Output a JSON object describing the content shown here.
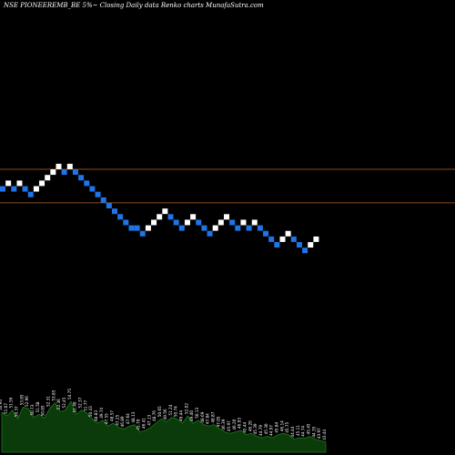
{
  "header": {
    "title": "NSE PIONEEREMB_BE 5%~  Closing Daily data  Renko  charts MunafaSutra.com"
  },
  "colors": {
    "background": "#000000",
    "up_brick": "#ffffff",
    "down_brick": "#1f74e8",
    "level_line": "#8a4a1c",
    "volume_fill": "#0b3b0b",
    "volume_stroke": "#1a7a1a"
  },
  "chart_data": {
    "type": "renko",
    "bricks": [
      {
        "level": 3,
        "dir": "down"
      },
      {
        "level": 4,
        "dir": "up"
      },
      {
        "level": 3,
        "dir": "down"
      },
      {
        "level": 4,
        "dir": "up"
      },
      {
        "level": 3,
        "dir": "down"
      },
      {
        "level": 2,
        "dir": "down"
      },
      {
        "level": 3,
        "dir": "up"
      },
      {
        "level": 4,
        "dir": "up"
      },
      {
        "level": 5,
        "dir": "up"
      },
      {
        "level": 6,
        "dir": "up"
      },
      {
        "level": 7,
        "dir": "up"
      },
      {
        "level": 6,
        "dir": "down"
      },
      {
        "level": 7,
        "dir": "up"
      },
      {
        "level": 6,
        "dir": "down"
      },
      {
        "level": 5,
        "dir": "down"
      },
      {
        "level": 4,
        "dir": "down"
      },
      {
        "level": 3,
        "dir": "down"
      },
      {
        "level": 2,
        "dir": "down"
      },
      {
        "level": 1,
        "dir": "down"
      },
      {
        "level": 0,
        "dir": "down"
      },
      {
        "level": -1,
        "dir": "down"
      },
      {
        "level": -2,
        "dir": "down"
      },
      {
        "level": -3,
        "dir": "down"
      },
      {
        "level": -4,
        "dir": "down"
      },
      {
        "level": -4,
        "dir": "down"
      },
      {
        "level": -5,
        "dir": "down"
      },
      {
        "level": -4,
        "dir": "up"
      },
      {
        "level": -3,
        "dir": "up"
      },
      {
        "level": -2,
        "dir": "up"
      },
      {
        "level": -1,
        "dir": "up"
      },
      {
        "level": -2,
        "dir": "down"
      },
      {
        "level": -3,
        "dir": "down"
      },
      {
        "level": -4,
        "dir": "down"
      },
      {
        "level": -3,
        "dir": "up"
      },
      {
        "level": -2,
        "dir": "up"
      },
      {
        "level": -3,
        "dir": "down"
      },
      {
        "level": -4,
        "dir": "down"
      },
      {
        "level": -5,
        "dir": "down"
      },
      {
        "level": -4,
        "dir": "up"
      },
      {
        "level": -3,
        "dir": "up"
      },
      {
        "level": -2,
        "dir": "up"
      },
      {
        "level": -3,
        "dir": "down"
      },
      {
        "level": -4,
        "dir": "down"
      },
      {
        "level": -3,
        "dir": "up"
      },
      {
        "level": -4,
        "dir": "down"
      },
      {
        "level": -3,
        "dir": "up"
      },
      {
        "level": -4,
        "dir": "down"
      },
      {
        "level": -5,
        "dir": "down"
      },
      {
        "level": -6,
        "dir": "down"
      },
      {
        "level": -7,
        "dir": "down"
      },
      {
        "level": -6,
        "dir": "up"
      },
      {
        "level": -5,
        "dir": "up"
      },
      {
        "level": -6,
        "dir": "down"
      },
      {
        "level": -7,
        "dir": "down"
      },
      {
        "level": -8,
        "dir": "down"
      },
      {
        "level": -7,
        "dir": "up"
      },
      {
        "level": -6,
        "dir": "up"
      }
    ],
    "reference_levels": [
      6.5,
      0.5
    ],
    "volume_labels": [
      "50.94",
      "51.07",
      "51.56",
      "50.37",
      "53.85",
      "52.96",
      "50.73",
      "51.58",
      "50.85",
      "52.31",
      "53.85",
      "52.36",
      "52.45",
      "54.75",
      "51.40",
      "52.37",
      "51.77",
      "50.43",
      "48.83",
      "49.74",
      "47.55",
      "48.57",
      "47.25",
      "46.89",
      "47.64",
      "48.13",
      "45.79",
      "46.41",
      "47.13",
      "48.76",
      "50.65",
      "49.56",
      "51.24",
      "50.74",
      "49.44",
      "52.02",
      "49.40",
      "50.13",
      "48.69",
      "47.84",
      "48.87",
      "47.05",
      "46.39",
      "45.97",
      "46.20",
      "46.93",
      "45.44",
      "46.26",
      "45.39",
      "44.79",
      "45.30",
      "44.97",
      "45.84",
      "46.14",
      "45.75",
      "44.44",
      "45.11",
      "44.74",
      "45.45",
      "44.35",
      "43.97",
      "43.44"
    ],
    "volume_values": [
      55,
      50,
      58,
      46,
      62,
      60,
      48,
      52,
      47,
      60,
      68,
      56,
      58,
      70,
      52,
      58,
      54,
      46,
      40,
      44,
      36,
      40,
      34,
      32,
      36,
      38,
      28,
      30,
      34,
      40,
      46,
      42,
      48,
      46,
      40,
      50,
      40,
      44,
      38,
      36,
      38,
      32,
      28,
      26,
      28,
      30,
      24,
      26,
      22,
      20,
      22,
      20,
      24,
      26,
      24,
      18,
      20,
      19,
      22,
      18,
      16,
      14
    ]
  }
}
